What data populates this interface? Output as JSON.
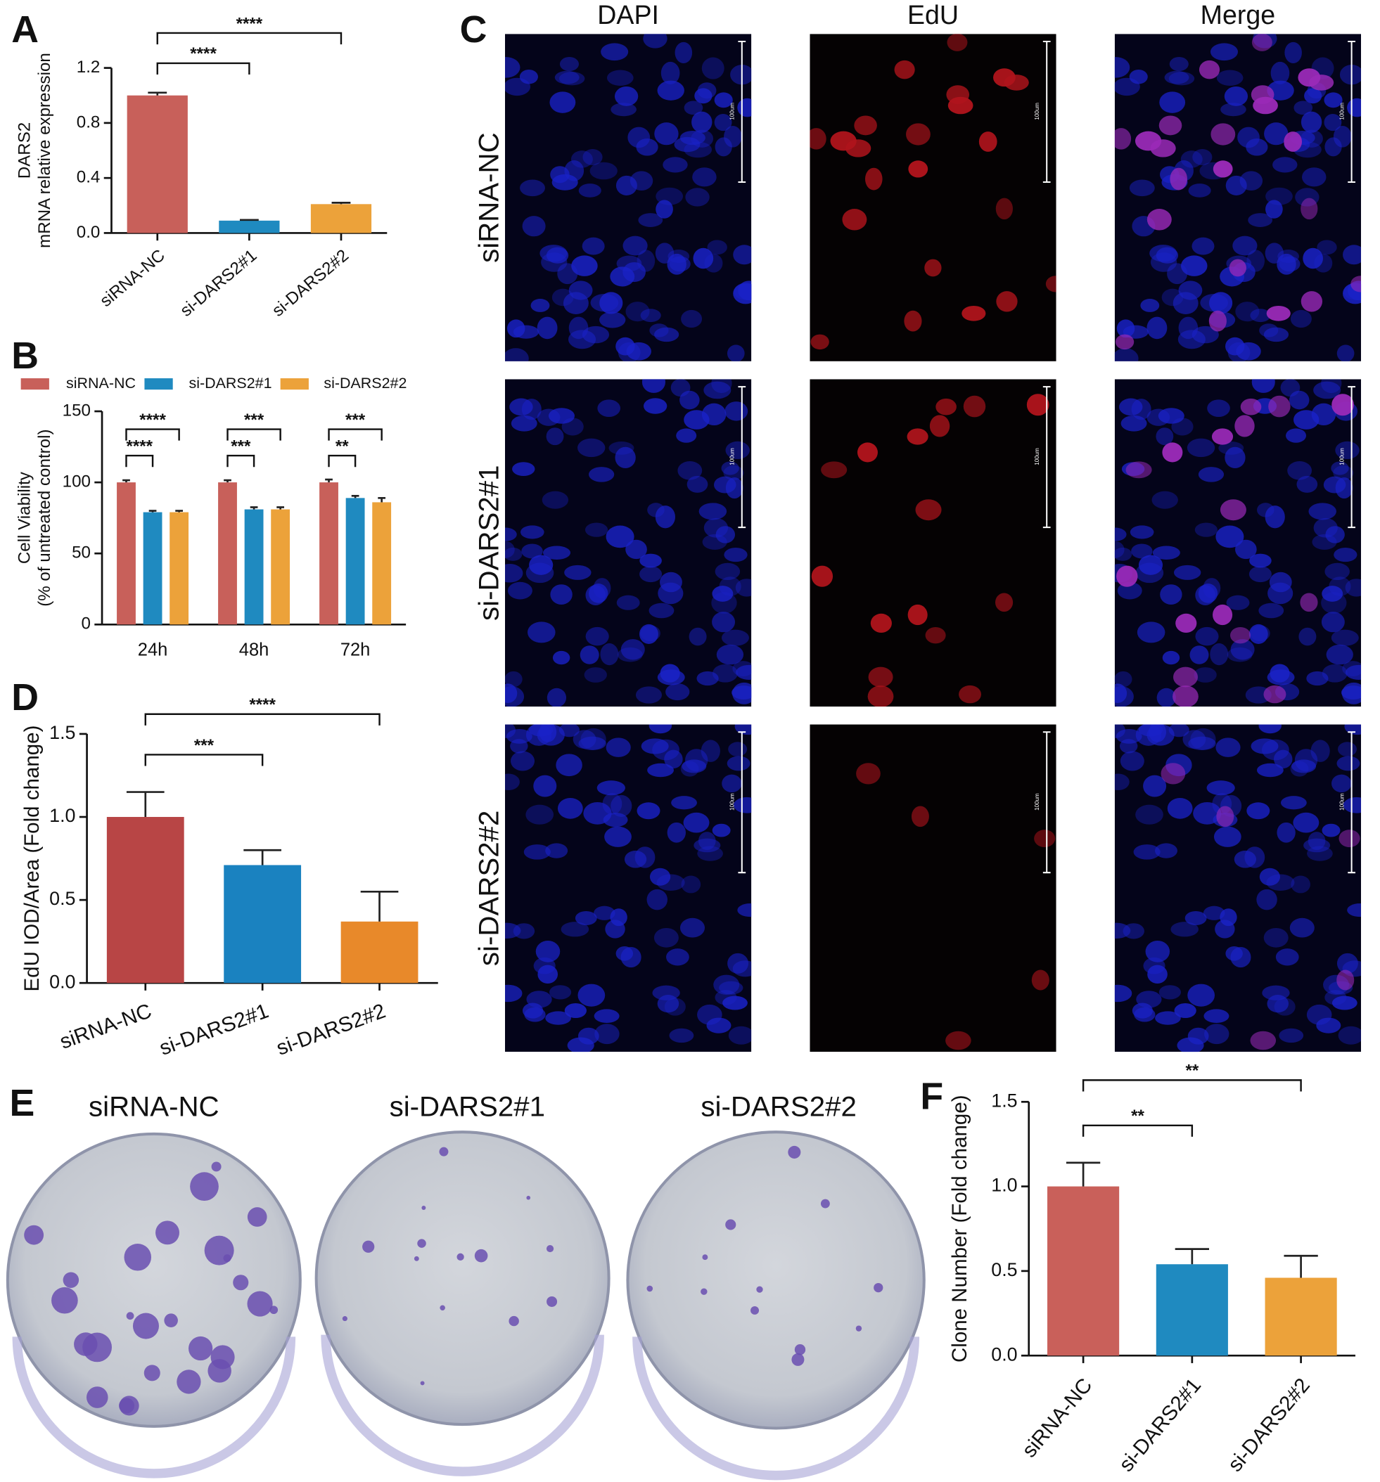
{
  "panel_labels": [
    "A",
    "B",
    "C",
    "D",
    "E",
    "F"
  ],
  "chart_data": [
    {
      "type": "bar",
      "ylabel": [
        "DARS2",
        "mRNA relative expression"
      ],
      "categories": [
        "siRNA-NC",
        "si-DARS2#1",
        "si-DARS2#2"
      ],
      "values": [
        1.0,
        0.09,
        0.21
      ],
      "errors": [
        0.02,
        0.005,
        0.01
      ],
      "colors": [
        "#c8605a",
        "#1f8ac0",
        "#eca23a"
      ],
      "ylim": [
        0,
        1.2
      ],
      "yticks": [
        {
          "value": 0,
          "label": "0.0"
        },
        0.4,
        0.8,
        1.2
      ],
      "annotations": [
        {
          "text": "****",
          "pair": [
            0,
            1
          ]
        },
        {
          "text": "****",
          "pair": [
            0,
            2
          ]
        }
      ]
    },
    {
      "type": "bar",
      "ylabel": [
        "Cell Viability",
        "(% of untreated control)"
      ],
      "categories": [
        "24h",
        "48h",
        "72h"
      ],
      "series": [
        {
          "name": "siRNA-NC",
          "color": "#c8605a",
          "values": [
            100,
            100,
            100
          ],
          "errors": [
            1.5,
            1.5,
            2
          ]
        },
        {
          "name": "si-DARS2#1",
          "color": "#1f8ac0",
          "values": [
            79,
            81,
            89
          ],
          "errors": [
            1,
            1.5,
            1.5
          ]
        },
        {
          "name": "si-DARS2#2",
          "color": "#eca23a",
          "values": [
            79,
            81,
            86
          ],
          "errors": [
            1,
            1.5,
            3
          ]
        }
      ],
      "ylim": [
        0,
        150
      ],
      "yticks": [
        0,
        50,
        100,
        150
      ],
      "legend": "top",
      "annotations": [
        {
          "text": "****",
          "group": 0,
          "pair": [
            0,
            1
          ]
        },
        {
          "text": "****",
          "group": 0,
          "pair": [
            0,
            2
          ]
        },
        {
          "text": "***",
          "group": 1,
          "pair": [
            0,
            1
          ]
        },
        {
          "text": "***",
          "group": 1,
          "pair": [
            0,
            2
          ]
        },
        {
          "text": "**",
          "group": 2,
          "pair": [
            0,
            1
          ]
        },
        {
          "text": "***",
          "group": 2,
          "pair": [
            0,
            2
          ]
        }
      ]
    },
    {
      "type": "bar",
      "ylabel": [
        "EdU IOD/Area (Fold change)"
      ],
      "categories": [
        "siRNA-NC",
        "si-DARS2#1",
        "si-DARS2#2"
      ],
      "values": [
        1.0,
        0.71,
        0.37
      ],
      "errors": [
        0.15,
        0.09,
        0.18
      ],
      "colors": [
        "#b84545",
        "#1a82c0",
        "#e8892a"
      ],
      "ylim": [
        0,
        1.5
      ],
      "yticks": [
        {
          "value": 0,
          "label": "0.0"
        },
        0.5,
        {
          "value": 1,
          "label": "1.0"
        },
        1.5
      ],
      "annotations": [
        {
          "text": "***",
          "pair": [
            0,
            1
          ]
        },
        {
          "text": "****",
          "pair": [
            0,
            2
          ]
        }
      ]
    },
    {
      "type": "bar",
      "ylabel": [
        "Clone Number (Fold change)"
      ],
      "categories": [
        "siRNA-NC",
        "si-DARS2#1",
        "si-DARS2#2"
      ],
      "values": [
        1.0,
        0.54,
        0.46
      ],
      "errors": [
        0.14,
        0.09,
        0.13
      ],
      "colors": [
        "#c9605a",
        "#1f8ac0",
        "#eca23a"
      ],
      "ylim": [
        0,
        1.5
      ],
      "yticks": [
        {
          "value": 0,
          "label": "0.0"
        },
        0.5,
        {
          "value": 1,
          "label": "1.0"
        },
        1.5
      ],
      "annotations": [
        {
          "text": "**",
          "pair": [
            0,
            1
          ]
        },
        {
          "text": "**",
          "pair": [
            0,
            2
          ]
        }
      ]
    }
  ],
  "microscopy": {
    "columns": [
      "DAPI",
      "EdU",
      "Merge"
    ],
    "rows": [
      "siRNA-NC",
      "si-DARS2#1",
      "si-DARS2#2"
    ],
    "scale_label": "100um"
  },
  "colony": {
    "labels": [
      "siRNA-NC",
      "si-DARS2#1",
      "si-DARS2#2"
    ]
  }
}
